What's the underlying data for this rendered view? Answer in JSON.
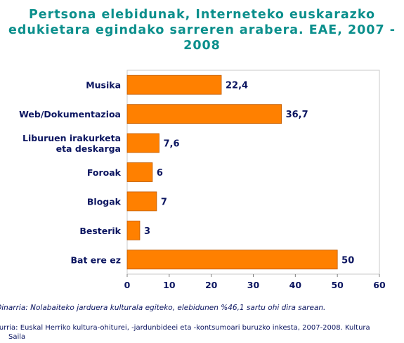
{
  "title_lines": [
    "Pertsona elebidunak, Interneteko euskarazko",
    "edukietara egindako sarreren arabera. EAE, 2007 -",
    "2008"
  ],
  "chart_data": {
    "type": "bar",
    "orientation": "horizontal",
    "categories": [
      [
        "Musika"
      ],
      [
        "Web/Dokumentazioa"
      ],
      [
        "Liburuen irakurketa",
        "eta deskarga"
      ],
      [
        "Foroak"
      ],
      [
        "Blogak"
      ],
      [
        "Besterik"
      ],
      [
        "Bat ere ez"
      ]
    ],
    "values": [
      22.4,
      36.7,
      7.6,
      6,
      7,
      3,
      50
    ],
    "value_labels": [
      "22,4",
      "36,7",
      "7,6",
      "6",
      "7",
      "3",
      "50"
    ],
    "xlim": [
      0,
      60
    ],
    "xticks": [
      "0",
      "10",
      "20",
      "30",
      "40",
      "50",
      "60"
    ],
    "grid": false,
    "legend": false,
    "bar_color": "#ff8000",
    "bar_stroke": "#c05a00",
    "label_color": "#0b1560"
  },
  "footnote": "Oinarria: Nolabaiteko jarduera kulturala egiteko, elebidunen %46,1 sartu ohi dira sarean.",
  "source_lines": [
    "Iturria: Euskal Herriko kultura-ohiturei, -jardunbideei eta -kontsumoari buruzko inkesta, 2007-2008. Kultura",
    "Saila"
  ]
}
